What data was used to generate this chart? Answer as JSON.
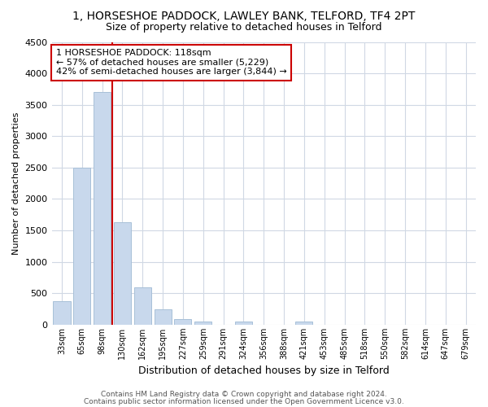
{
  "title": "1, HORSESHOE PADDOCK, LAWLEY BANK, TELFORD, TF4 2PT",
  "subtitle": "Size of property relative to detached houses in Telford",
  "xlabel": "Distribution of detached houses by size in Telford",
  "ylabel": "Number of detached properties",
  "bar_color": "#c8d8ec",
  "bar_edge_color": "#a8c0d8",
  "vline_color": "#cc0000",
  "categories": [
    "33sqm",
    "65sqm",
    "98sqm",
    "130sqm",
    "162sqm",
    "195sqm",
    "227sqm",
    "259sqm",
    "291sqm",
    "324sqm",
    "356sqm",
    "388sqm",
    "421sqm",
    "453sqm",
    "485sqm",
    "518sqm",
    "550sqm",
    "582sqm",
    "614sqm",
    "647sqm",
    "679sqm"
  ],
  "values": [
    380,
    2500,
    3700,
    1630,
    600,
    240,
    90,
    55,
    0,
    55,
    0,
    0,
    55,
    0,
    0,
    0,
    0,
    0,
    0,
    0,
    0
  ],
  "ylim": [
    0,
    4500
  ],
  "yticks": [
    0,
    500,
    1000,
    1500,
    2000,
    2500,
    3000,
    3500,
    4000,
    4500
  ],
  "vline_x": 2.5,
  "annotation_text": "1 HORSESHOE PADDOCK: 118sqm\n← 57% of detached houses are smaller (5,229)\n42% of semi-detached houses are larger (3,844) →",
  "footer1": "Contains HM Land Registry data © Crown copyright and database right 2024.",
  "footer2": "Contains public sector information licensed under the Open Government Licence v3.0.",
  "background_color": "#ffffff",
  "grid_color": "#d0d8e4"
}
